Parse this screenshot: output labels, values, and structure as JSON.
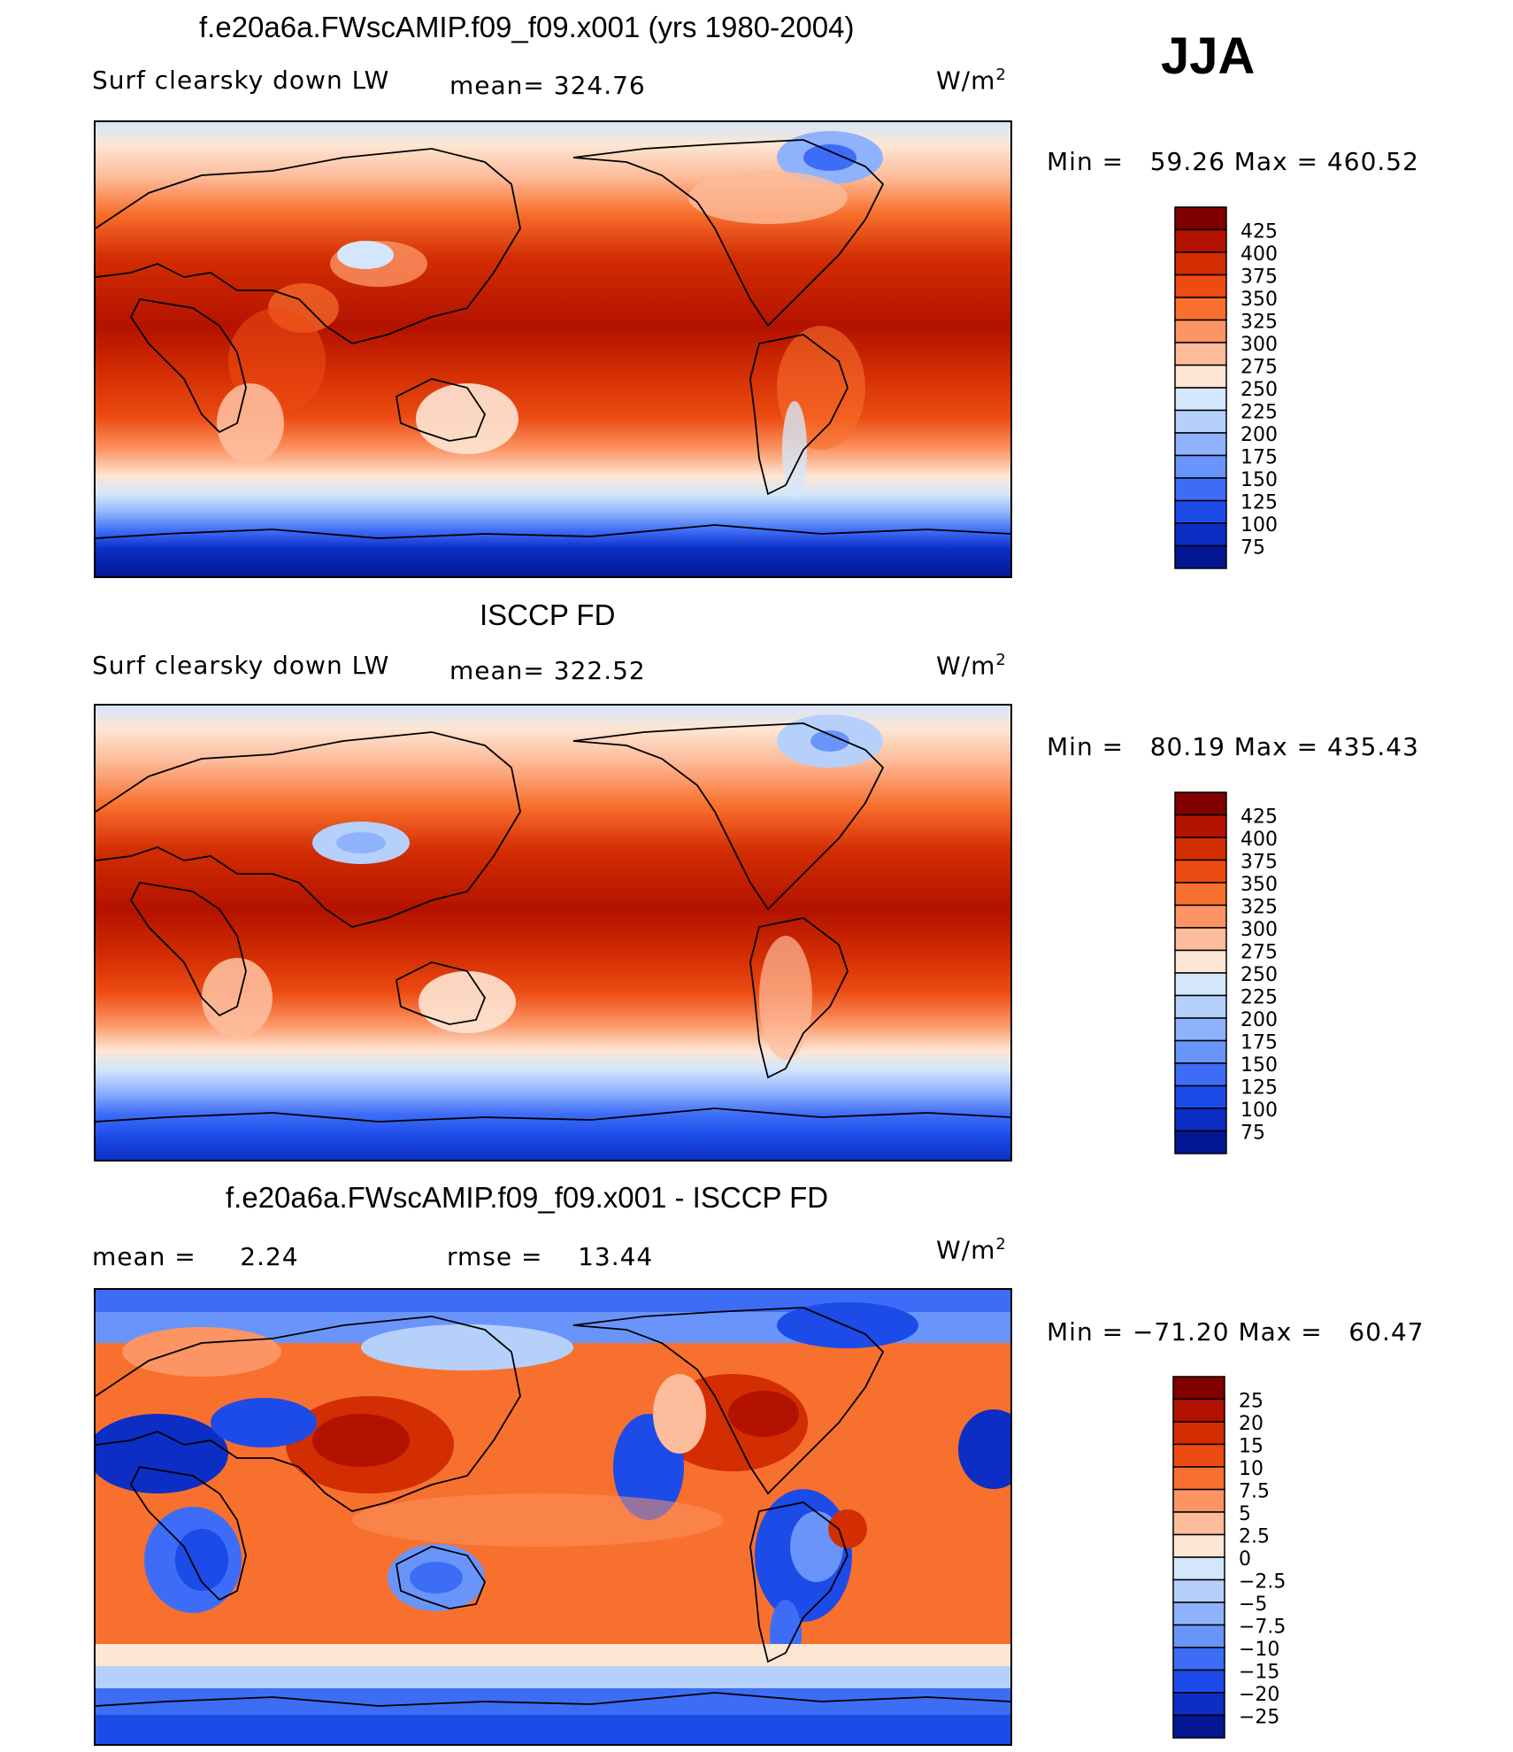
{
  "season": "JJA",
  "units_prefix": "W/m",
  "units_exp": "2",
  "panels": [
    {
      "title": "f.e20a6a.FWscAMIP.f09_f09.x001 (yrs 1980-2004)",
      "left_label": "Surf clearsky down LW",
      "center_label": "mean= 324.76",
      "minmax": "Min =   59.26 Max = 460.52",
      "colorbar": {
        "labels": [
          "425",
          "400",
          "375",
          "350",
          "325",
          "300",
          "275",
          "250",
          "225",
          "200",
          "175",
          "150",
          "125",
          "100",
          "75"
        ],
        "colors": [
          "#800000",
          "#b31200",
          "#d22d03",
          "#ec4b12",
          "#f8702d",
          "#fc9463",
          "#fdbc9b",
          "#fde6d4",
          "#d4e6fb",
          "#b6d0fc",
          "#8fb2fc",
          "#6995fb",
          "#3d6df7",
          "#1c4be8",
          "#0c2ec5",
          "#031792"
        ]
      },
      "chart_data": {
        "type": "heatmap",
        "title": "f.e20a6a.FWscAMIP.f09_f09.x001 (yrs 1980-2004)",
        "variable": "Surf clearsky down LW",
        "mean": 324.76,
        "min": 59.26,
        "max": 460.52,
        "units": "W/m2",
        "contour_levels": [
          75,
          100,
          125,
          150,
          175,
          200,
          225,
          250,
          275,
          300,
          325,
          350,
          375,
          400,
          425
        ]
      }
    },
    {
      "title": "ISCCP FD",
      "left_label": "Surf clearsky down LW",
      "center_label": "mean= 322.52",
      "minmax": "Min =   80.19 Max = 435.43",
      "colorbar": {
        "labels": [
          "425",
          "400",
          "375",
          "350",
          "325",
          "300",
          "275",
          "250",
          "225",
          "200",
          "175",
          "150",
          "125",
          "100",
          "75"
        ],
        "colors": [
          "#800000",
          "#b31200",
          "#d22d03",
          "#ec4b12",
          "#f8702d",
          "#fc9463",
          "#fdbc9b",
          "#fde6d4",
          "#d4e6fb",
          "#b6d0fc",
          "#8fb2fc",
          "#6995fb",
          "#3d6df7",
          "#1c4be8",
          "#0c2ec5",
          "#031792"
        ]
      },
      "chart_data": {
        "type": "heatmap",
        "title": "ISCCP FD",
        "variable": "Surf clearsky down LW",
        "mean": 322.52,
        "min": 80.19,
        "max": 435.43,
        "units": "W/m2",
        "contour_levels": [
          75,
          100,
          125,
          150,
          175,
          200,
          225,
          250,
          275,
          300,
          325,
          350,
          375,
          400,
          425
        ]
      }
    },
    {
      "title": "f.e20a6a.FWscAMIP.f09_f09.x001 - ISCCP FD",
      "left_label": "mean =     2.24",
      "center_label": "rmse =    13.44",
      "minmax": "Min = −71.20 Max =   60.47",
      "colorbar": {
        "labels": [
          "25",
          "20",
          "15",
          "10",
          "7.5",
          "5",
          "2.5",
          "0",
          "−2.5",
          "−5",
          "−7.5",
          "−10",
          "−15",
          "−20",
          "−25"
        ],
        "colors": [
          "#800000",
          "#b31200",
          "#d22d03",
          "#ec4b12",
          "#f8702d",
          "#fc9463",
          "#fdbc9b",
          "#fde6d4",
          "#d4e6fb",
          "#b6d0fc",
          "#8fb2fc",
          "#6995fb",
          "#3d6df7",
          "#1c4be8",
          "#0c2ec5",
          "#031792"
        ]
      },
      "chart_data": {
        "type": "heatmap",
        "title": "f.e20a6a.FWscAMIP.f09_f09.x001 - ISCCP FD",
        "mean": 2.24,
        "rmse": 13.44,
        "min": -71.2,
        "max": 60.47,
        "units": "W/m2",
        "contour_levels": [
          -25,
          -20,
          -15,
          -10,
          -7.5,
          -5,
          -2.5,
          0,
          2.5,
          5,
          7.5,
          10,
          15,
          20,
          25
        ]
      }
    }
  ]
}
